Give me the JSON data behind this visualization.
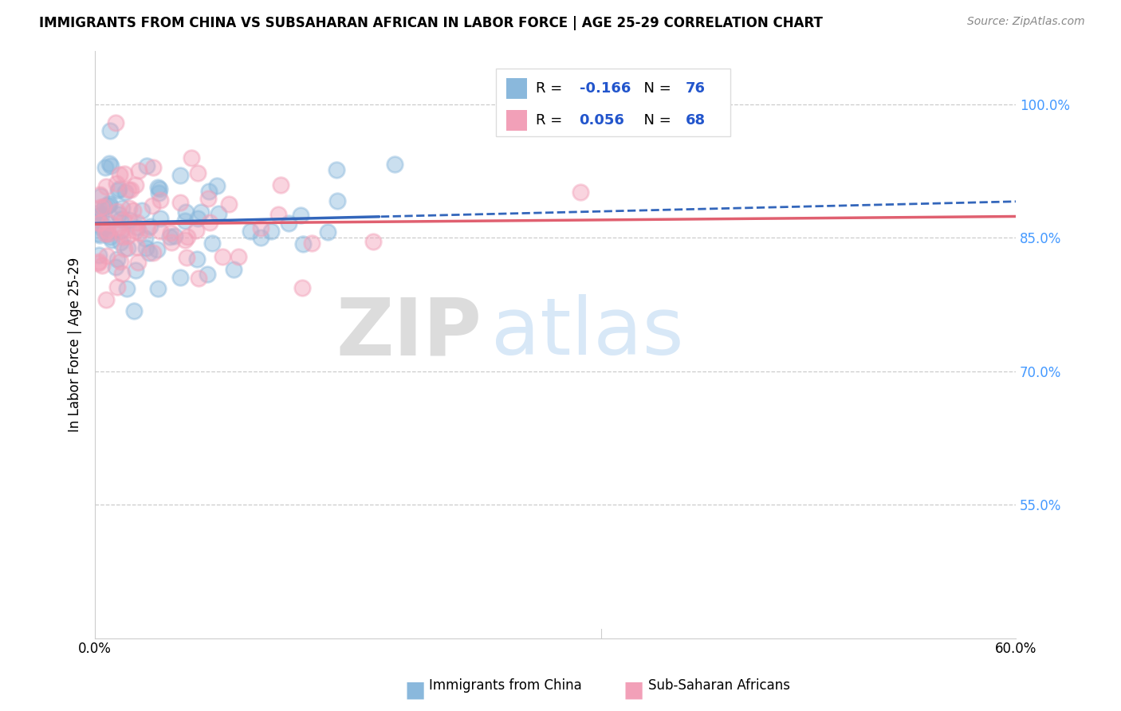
{
  "title": "IMMIGRANTS FROM CHINA VS SUBSAHARAN AFRICAN IN LABOR FORCE | AGE 25-29 CORRELATION CHART",
  "source": "Source: ZipAtlas.com",
  "ylabel": "In Labor Force | Age 25-29",
  "R_china": -0.166,
  "N_china": 76,
  "R_africa": 0.056,
  "N_africa": 68,
  "watermark_zip": "ZIP",
  "watermark_atlas": "atlas",
  "china_color": "#8ab8dc",
  "africa_color": "#f2a0b8",
  "china_line_color": "#3366bb",
  "africa_line_color": "#e06070",
  "background_color": "#ffffff",
  "yticks": [
    0.55,
    0.7,
    0.85,
    1.0
  ],
  "ytick_labels": [
    "55.0%",
    "70.0%",
    "85.0%",
    "100.0%"
  ],
  "xlim": [
    0.0,
    0.6
  ],
  "ylim": [
    0.4,
    1.06
  ],
  "legend_china_label": "Immigrants from China",
  "legend_africa_label": "Sub-Saharan Africans",
  "legend_text_color": "#2255cc",
  "grid_color": "#cccccc",
  "right_axis_color": "#4499ff"
}
